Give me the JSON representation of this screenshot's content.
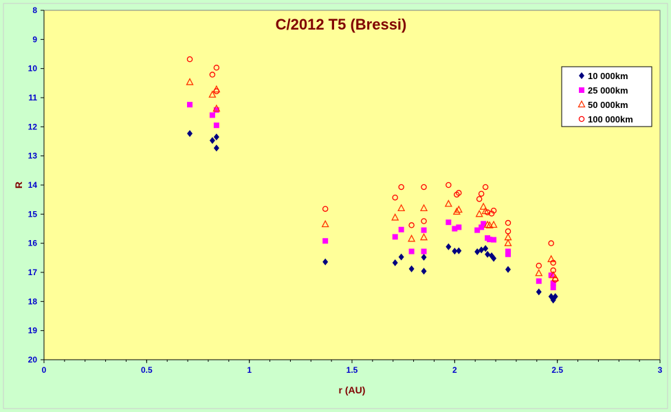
{
  "chart_data": {
    "type": "scatter",
    "title": "C/2012 T5 (Bressi)",
    "xlabel": "r (AU)",
    "ylabel": "R",
    "xlim": [
      0,
      3
    ],
    "ylim": [
      8,
      20
    ],
    "y_inverted": true,
    "xticks": [
      "0",
      "0.5",
      "1",
      "1.5",
      "2",
      "2.5",
      "3"
    ],
    "yticks": [
      "8",
      "9",
      "10",
      "11",
      "12",
      "13",
      "14",
      "15",
      "16",
      "17",
      "18",
      "19",
      "20"
    ],
    "grid": false,
    "legend_position": "top-right",
    "colors": {
      "plot_background": "#ffff99",
      "page_background": "#ccffcc",
      "s1": "#00007f",
      "s2": "#ff00ff",
      "s3": "#ff3300",
      "s4": "#ff0000"
    },
    "series": [
      {
        "name": "10 000km",
        "marker": "diamond",
        "points": [
          [
            0.71,
            12.23
          ],
          [
            0.82,
            12.47
          ],
          [
            0.84,
            12.35
          ],
          [
            0.84,
            12.73
          ],
          [
            1.37,
            16.64
          ],
          [
            1.71,
            16.67
          ],
          [
            1.74,
            16.47
          ],
          [
            1.79,
            16.88
          ],
          [
            1.85,
            16.96
          ],
          [
            1.85,
            16.48
          ],
          [
            1.97,
            16.12
          ],
          [
            2.0,
            16.27
          ],
          [
            2.02,
            16.26
          ],
          [
            2.11,
            16.29
          ],
          [
            2.13,
            16.23
          ],
          [
            2.15,
            16.18
          ],
          [
            2.16,
            16.38
          ],
          [
            2.18,
            16.43
          ],
          [
            2.19,
            16.52
          ],
          [
            2.26,
            16.9
          ],
          [
            2.41,
            17.67
          ],
          [
            2.47,
            17.83
          ],
          [
            2.48,
            17.95
          ],
          [
            2.49,
            17.83
          ]
        ]
      },
      {
        "name": "25 000km",
        "marker": "square",
        "points": [
          [
            0.71,
            11.24
          ],
          [
            0.82,
            11.6
          ],
          [
            0.84,
            11.95
          ],
          [
            0.84,
            11.42
          ],
          [
            1.37,
            15.92
          ],
          [
            1.71,
            15.78
          ],
          [
            1.74,
            15.53
          ],
          [
            1.79,
            16.28
          ],
          [
            1.85,
            16.28
          ],
          [
            1.85,
            15.55
          ],
          [
            1.97,
            15.28
          ],
          [
            2.0,
            15.5
          ],
          [
            2.02,
            15.45
          ],
          [
            2.11,
            15.55
          ],
          [
            2.13,
            15.45
          ],
          [
            2.14,
            15.33
          ],
          [
            2.16,
            15.82
          ],
          [
            2.17,
            15.87
          ],
          [
            2.19,
            15.88
          ],
          [
            2.26,
            16.38
          ],
          [
            2.26,
            16.28
          ],
          [
            2.41,
            17.3
          ],
          [
            2.47,
            17.1
          ],
          [
            2.48,
            17.37
          ],
          [
            2.48,
            17.52
          ]
        ]
      },
      {
        "name": "50 000km",
        "marker": "triangle",
        "points": [
          [
            0.71,
            10.47
          ],
          [
            0.82,
            10.9
          ],
          [
            0.84,
            10.72
          ],
          [
            0.84,
            11.38
          ],
          [
            1.37,
            15.35
          ],
          [
            1.71,
            15.12
          ],
          [
            1.74,
            14.8
          ],
          [
            1.79,
            15.85
          ],
          [
            1.85,
            15.8
          ],
          [
            1.85,
            14.8
          ],
          [
            1.97,
            14.65
          ],
          [
            2.01,
            14.92
          ],
          [
            2.02,
            14.85
          ],
          [
            2.12,
            15.0
          ],
          [
            2.14,
            14.75
          ],
          [
            2.15,
            14.9
          ],
          [
            2.16,
            15.37
          ],
          [
            2.17,
            15.39
          ],
          [
            2.19,
            15.37
          ],
          [
            2.26,
            15.8
          ],
          [
            2.26,
            16.0
          ],
          [
            2.41,
            17.03
          ],
          [
            2.47,
            16.55
          ],
          [
            2.48,
            17.1
          ],
          [
            2.49,
            17.2
          ]
        ]
      },
      {
        "name": "100 000km",
        "marker": "circle",
        "points": [
          [
            0.71,
            9.68
          ],
          [
            0.82,
            10.21
          ],
          [
            0.84,
            9.97
          ],
          [
            0.84,
            10.78
          ],
          [
            1.37,
            14.82
          ],
          [
            1.71,
            14.43
          ],
          [
            1.74,
            14.07
          ],
          [
            1.79,
            15.38
          ],
          [
            1.85,
            15.24
          ],
          [
            1.85,
            14.07
          ],
          [
            1.97,
            14.0
          ],
          [
            2.01,
            14.33
          ],
          [
            2.02,
            14.27
          ],
          [
            2.12,
            14.48
          ],
          [
            2.13,
            14.3
          ],
          [
            2.15,
            14.07
          ],
          [
            2.16,
            14.94
          ],
          [
            2.18,
            14.98
          ],
          [
            2.19,
            14.88
          ],
          [
            2.26,
            15.3
          ],
          [
            2.26,
            15.59
          ],
          [
            2.41,
            16.77
          ],
          [
            2.47,
            16.0
          ],
          [
            2.48,
            16.67
          ],
          [
            2.48,
            16.93
          ],
          [
            2.49,
            17.25
          ]
        ]
      }
    ]
  }
}
